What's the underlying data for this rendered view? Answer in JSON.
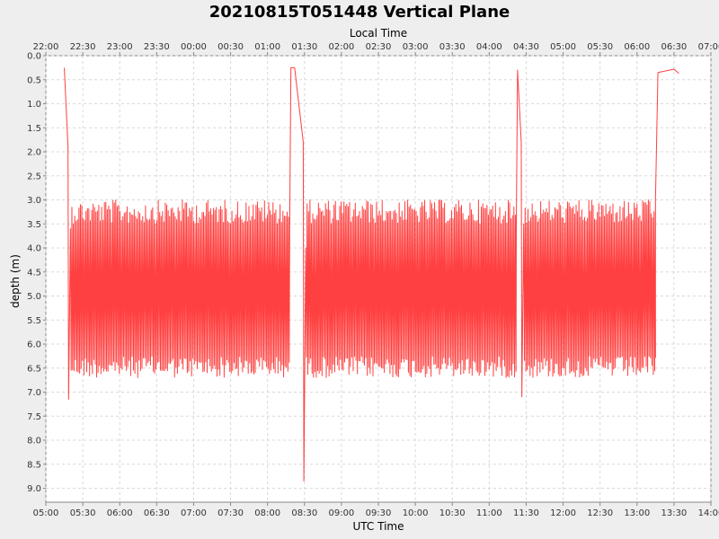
{
  "chart_data": {
    "type": "line",
    "title": "20210815T051448 Vertical Plane",
    "xlabel": "UTC Time",
    "x2label": "Local Time",
    "ylabel": "depth (m)",
    "y_inverted": true,
    "ylim": [
      0.0,
      9.3
    ],
    "xlim": [
      "05:00",
      "14:00"
    ],
    "grid": true,
    "line_color": "#ff4040",
    "background_color": "#ffffff",
    "y_ticks": [
      "0.0",
      "0.5",
      "1.0",
      "1.5",
      "2.0",
      "2.5",
      "3.0",
      "3.5",
      "4.0",
      "4.5",
      "5.0",
      "5.5",
      "6.0",
      "6.5",
      "7.0",
      "7.5",
      "8.0",
      "8.5",
      "9.0"
    ],
    "x_ticks": [
      "05:00",
      "05:30",
      "06:00",
      "06:30",
      "07:00",
      "07:30",
      "08:00",
      "08:30",
      "09:00",
      "09:30",
      "10:00",
      "10:30",
      "11:00",
      "11:30",
      "12:00",
      "12:30",
      "13:00",
      "13:30",
      "14:00"
    ],
    "x2_ticks": [
      "22:00",
      "22:30",
      "23:00",
      "23:30",
      "00:00",
      "00:30",
      "01:00",
      "01:30",
      "02:00",
      "02:30",
      "03:00",
      "03:30",
      "04:00",
      "04:30",
      "05:00",
      "05:30",
      "06:00",
      "06:30",
      "07:00"
    ],
    "series": [
      {
        "segments": [
          {
            "kind": "line",
            "points": [
              [
                "05:15",
                0.25
              ],
              [
                "05:18",
                1.9
              ],
              [
                "05:18.5",
                7.15
              ],
              [
                "05:20",
                3.6
              ]
            ]
          },
          {
            "kind": "yoyo",
            "start": "05:20",
            "end": "08:18",
            "shallow": 3.3,
            "deep": 6.45,
            "period_min": 1.15
          },
          {
            "kind": "line",
            "points": [
              [
                "08:18",
                3.5
              ],
              [
                "08:19",
                0.25
              ],
              [
                "08:22",
                0.25
              ],
              [
                "08:29",
                1.8
              ],
              [
                "08:29.5",
                8.85
              ],
              [
                "08:31",
                4.0
              ]
            ]
          },
          {
            "kind": "yoyo",
            "start": "08:31",
            "end": "11:22",
            "shallow": 3.3,
            "deep": 6.45,
            "period_min": 1.15
          },
          {
            "kind": "line",
            "points": [
              [
                "11:22",
                3.5
              ],
              [
                "11:23",
                0.3
              ],
              [
                "11:26",
                1.8
              ],
              [
                "11:26.5",
                7.1
              ],
              [
                "11:28",
                3.5
              ]
            ]
          },
          {
            "kind": "yoyo",
            "start": "11:28",
            "end": "13:15",
            "shallow": 3.3,
            "deep": 6.45,
            "period_min": 1.15
          },
          {
            "kind": "line",
            "points": [
              [
                "13:15",
                3.0
              ],
              [
                "13:17",
                0.35
              ],
              [
                "13:30",
                0.28
              ],
              [
                "13:34",
                0.37
              ]
            ]
          }
        ]
      }
    ]
  }
}
